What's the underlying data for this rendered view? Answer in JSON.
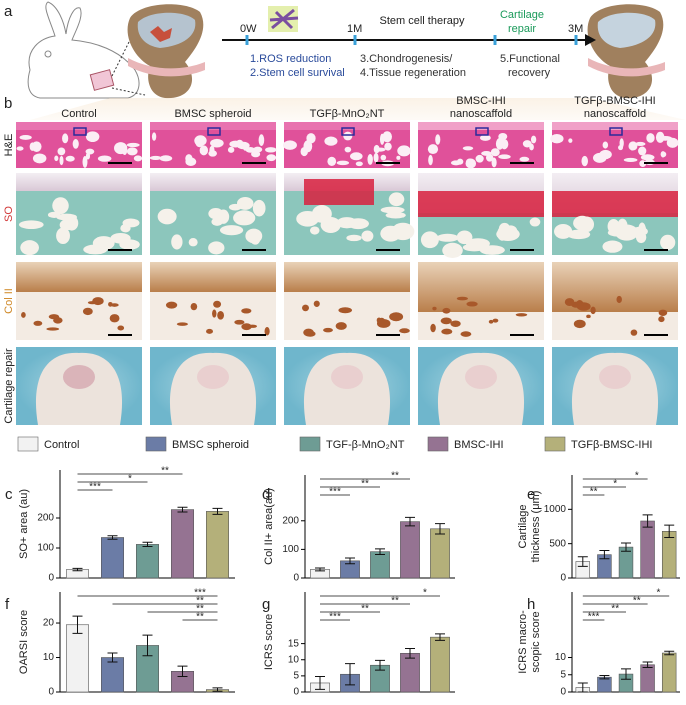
{
  "panel_a": {
    "letter": "a",
    "ticks": [
      "0W",
      "1M",
      "3M"
    ],
    "phase": "Stem cell therapy",
    "outcome": [
      "Cartilage",
      "repair"
    ],
    "steps": [
      "1.ROS reduction",
      "2.Stem cell survival",
      "3.Chondrogenesis/",
      "4.Tissue regeneration",
      "5.Functional",
      "recovery"
    ]
  },
  "panel_b": {
    "letter": "b",
    "columns": [
      [
        "Control"
      ],
      [
        "BMSC spheroid"
      ],
      [
        "TGFβ-MnO₂NT"
      ],
      [
        "BMSC-IHI",
        "nanoscaffold"
      ],
      [
        "TGFβ-BMSC-IHI",
        "nanoscaffold"
      ]
    ],
    "rows": [
      "H&E",
      "SO",
      "Col II",
      "Cartilage repair"
    ]
  },
  "legend": [
    {
      "name": "Control",
      "color": "#f2f2f2"
    },
    {
      "name": "BMSC spheroid",
      "color": "#6b7ca6"
    },
    {
      "name": "TGF-β-MnO₂NT",
      "color": "#6e9c94"
    },
    {
      "name": "BMSC-IHI",
      "color": "#957392"
    },
    {
      "name": "TGFβ-BMSC-IHI",
      "color": "#b4b07a"
    }
  ],
  "chart_data": [
    {
      "type": "bar",
      "panel": "c",
      "ylabel": [
        "SO+ area (au)"
      ],
      "values": [
        28,
        135,
        112,
        228,
        222
      ],
      "errors": [
        4,
        6,
        7,
        8,
        10
      ],
      "ylim": [
        0,
        360
      ],
      "yticks": [
        0,
        100,
        200
      ],
      "significance": [
        "***",
        "*",
        "**"
      ],
      "significance_vs": "first"
    },
    {
      "type": "bar",
      "panel": "d",
      "ylabel": [
        "Col II+ area(au)"
      ],
      "values": [
        30,
        60,
        92,
        197,
        172
      ],
      "errors": [
        5,
        10,
        10,
        15,
        18
      ],
      "ylim": [
        0,
        360
      ],
      "yticks": [
        0,
        100,
        200
      ],
      "significance": [
        "***",
        "**",
        "**"
      ],
      "significance_vs": "first"
    },
    {
      "type": "bar",
      "panel": "e",
      "ylabel": [
        "Cartilage",
        "thickness (μm)"
      ],
      "values": [
        240,
        340,
        450,
        830,
        680
      ],
      "errors": [
        70,
        60,
        60,
        90,
        90
      ],
      "ylim": [
        0,
        1500
      ],
      "yticks": [
        0,
        500,
        1000
      ],
      "significance": [
        "**",
        "*",
        "*"
      ],
      "significance_vs": "first"
    },
    {
      "type": "bar",
      "panel": "f",
      "ylabel": [
        "OARSI score"
      ],
      "values": [
        19.5,
        10,
        13.5,
        6,
        0.7
      ],
      "errors": [
        2.5,
        1.3,
        3,
        1.5,
        0.5
      ],
      "ylim": [
        0,
        29
      ],
      "yticks": [
        0,
        10,
        20
      ],
      "significance": [
        "***",
        "**",
        "**",
        "**"
      ],
      "significance_vs": "last"
    },
    {
      "type": "bar",
      "panel": "g",
      "ylabel": [
        "ICRS  score"
      ],
      "values": [
        2.8,
        5.5,
        8.3,
        12,
        17
      ],
      "errors": [
        2,
        3.3,
        1.5,
        1.5,
        1
      ],
      "ylim": [
        0,
        31
      ],
      "yticks": [
        0,
        5,
        10,
        15
      ],
      "significance": [
        "***",
        "**",
        "**",
        "*"
      ],
      "significance_vs": "first"
    },
    {
      "type": "bar",
      "panel": "h",
      "ylabel": [
        "ICRS macro-",
        "scopic score"
      ],
      "values": [
        1.3,
        4.3,
        5.2,
        7.9,
        11.3
      ],
      "errors": [
        1.3,
        0.5,
        1.5,
        0.8,
        0.5
      ],
      "ylim": [
        0,
        29
      ],
      "yticks": [
        0,
        5,
        10
      ],
      "significance": [
        "***",
        "**",
        "**",
        "*"
      ],
      "significance_vs": "first"
    }
  ]
}
